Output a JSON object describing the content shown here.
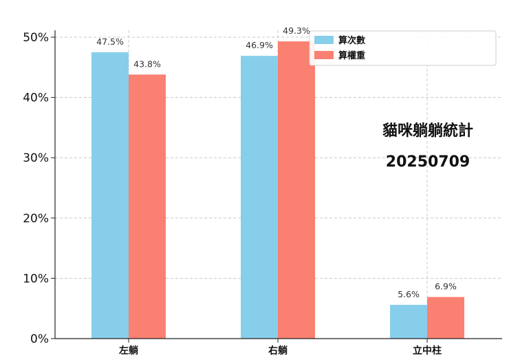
{
  "chart_data": {
    "type": "bar",
    "categories": [
      "左躺",
      "右躺",
      "立中柱"
    ],
    "series": [
      {
        "name": "算次數",
        "values": [
          47.5,
          46.9,
          5.6
        ],
        "color": "#87ceeb"
      },
      {
        "name": "算權重",
        "values": [
          43.8,
          49.3,
          6.9
        ],
        "color": "#fa8072"
      }
    ],
    "data_labels": [
      [
        "47.5%",
        "46.9%",
        "5.6%"
      ],
      [
        "43.8%",
        "49.3%",
        "6.9%"
      ]
    ],
    "ylim": [
      0,
      50
    ],
    "yticks": [
      0,
      10,
      20,
      30,
      40,
      50
    ],
    "ytick_labels": [
      "0%",
      "10%",
      "20%",
      "30%",
      "40%",
      "50%"
    ],
    "grid": true,
    "legend_position": "top-right",
    "annotations": [
      "貓咪躺躺統計",
      "20250709"
    ]
  }
}
